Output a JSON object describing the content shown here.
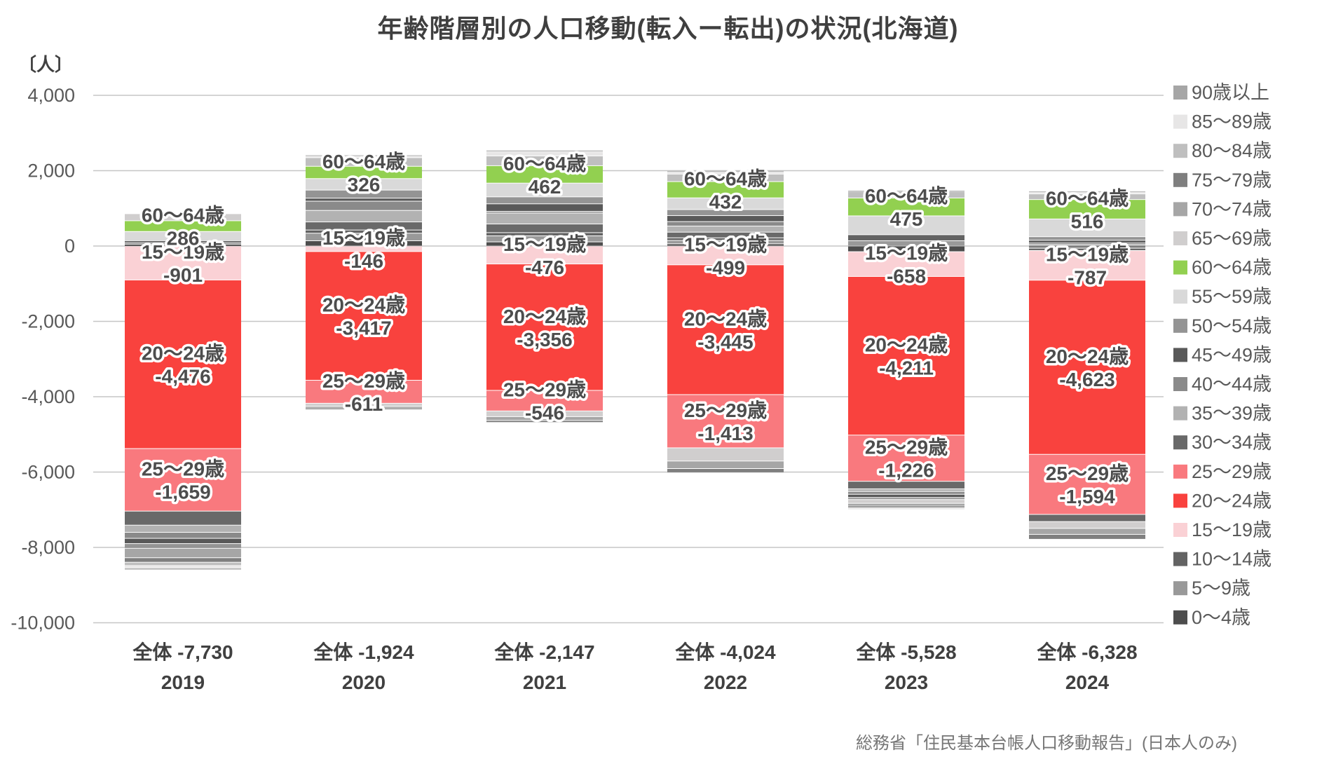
{
  "title": "年齢階層別の人口移動(転入ー転出)の状況(北海道)",
  "y_axis": {
    "unit": "〔人〕",
    "ticks": [
      {
        "label": "4,000",
        "value": 4000
      },
      {
        "label": "2,000",
        "value": 2000
      },
      {
        "label": "0",
        "value": 0
      },
      {
        "label": "-2,000",
        "value": -2000
      },
      {
        "label": "-4,000",
        "value": -4000
      },
      {
        "label": "-6,000",
        "value": -6000
      },
      {
        "label": "-8,000",
        "value": -8000
      },
      {
        "label": "-10,000",
        "value": -10000
      }
    ]
  },
  "source": "総務省「住民基本台帳人口移動報告」(日本人のみ)",
  "chart_data": {
    "type": "bar",
    "stacked": true,
    "grid": "horizontal",
    "legend_position": "right",
    "ylim": [
      -10000,
      4000
    ],
    "categories": [
      "2019",
      "2020",
      "2021",
      "2022",
      "2023",
      "2024"
    ],
    "totals": [
      -7730,
      -1924,
      -2147,
      -4024,
      -5528,
      -6328
    ],
    "total_label_prefix": "全体",
    "total_labels": [
      "全体 -7,730",
      "全体 -1,924",
      "全体 -2,147",
      "全体 -4,024",
      "全体 -5,528",
      "全体 -6,328"
    ],
    "series": [
      {
        "name": "0〜4歳",
        "color": "#4d4d4d",
        "labeled": false,
        "values": [
          40,
          140,
          110,
          58,
          -150,
          -25
        ]
      },
      {
        "name": "5〜9歳",
        "color": "#999999",
        "labeled": false,
        "values": [
          55,
          200,
          160,
          90,
          140,
          -35
        ]
      },
      {
        "name": "10〜14歳",
        "color": "#636363",
        "labeled": false,
        "values": [
          40,
          85,
          85,
          70,
          160,
          -60
        ]
      },
      {
        "name": "15〜19歳",
        "color": "#fad1d5",
        "labeled": true,
        "values": [
          -901,
          -146,
          -476,
          -499,
          -658,
          -787
        ]
      },
      {
        "name": "20〜24歳",
        "color": "#f9423e",
        "labeled": true,
        "values": [
          -4476,
          -3417,
          -3356,
          -3445,
          -4211,
          -4623
        ]
      },
      {
        "name": "25〜29歳",
        "color": "#f9797e",
        "labeled": true,
        "values": [
          -1659,
          -611,
          -546,
          -1413,
          -1226,
          -1594
        ]
      },
      {
        "name": "30〜34歳",
        "color": "#696969",
        "labeled": false,
        "values": [
          -373,
          215,
          230,
          150,
          -200,
          -190
        ]
      },
      {
        "name": "35〜39歳",
        "color": "#b2b2b2",
        "labeled": false,
        "values": [
          -190,
          305,
          290,
          160,
          -70,
          50
        ]
      },
      {
        "name": "40〜44歳",
        "color": "#8a8a8a",
        "labeled": false,
        "values": [
          -160,
          245,
          45,
          120,
          -75,
          35
        ]
      },
      {
        "name": "45〜49歳",
        "color": "#595959",
        "labeled": false,
        "values": [
          -140,
          80,
          200,
          160,
          -85,
          68
        ]
      },
      {
        "name": "50〜54歳",
        "color": "#949494",
        "labeled": false,
        "values": [
          -125,
          215,
          185,
          160,
          -55,
          95
        ]
      },
      {
        "name": "55〜59歳",
        "color": "#d9d9d9",
        "labeled": false,
        "values": [
          250,
          305,
          365,
          310,
          500,
          470
        ]
      },
      {
        "name": "60〜64歳",
        "color": "#92d050",
        "labeled": true,
        "values": [
          286,
          326,
          462,
          432,
          475,
          516
        ]
      },
      {
        "name": "65〜69歳",
        "color": "#d0cece",
        "labeled": false,
        "values": [
          187,
          -80,
          -150,
          -350,
          -100,
          -180
        ]
      },
      {
        "name": "70〜74歳",
        "color": "#a6a6a6",
        "labeled": false,
        "values": [
          -250,
          -50,
          -100,
          -200,
          -75,
          -160
        ]
      },
      {
        "name": "75〜79歳",
        "color": "#7f7f7f",
        "labeled": false,
        "values": [
          -120,
          -31,
          -56,
          -109,
          -35,
          -130
        ]
      },
      {
        "name": "80〜84歳",
        "color": "#bfbfbf",
        "labeled": false,
        "values": [
          -90,
          230,
          260,
          200,
          180,
          150
        ]
      },
      {
        "name": "85〜89歳",
        "color": "#e7e6e6",
        "labeled": false,
        "values": [
          -70,
          55,
          120,
          70,
          -58,
          60
        ]
      },
      {
        "name": "90歳以上",
        "color": "#a6a6a6",
        "labeled": false,
        "values": [
          -34,
          10,
          25,
          12,
          15,
          12
        ]
      }
    ]
  },
  "style": {
    "grid_color": "#c6c6c6",
    "tick_text_color": "#595959",
    "label_text_color": "#4d4d4d",
    "xlabel_text_color": "#404040",
    "legend_text_color": "#595959",
    "accent_green": "#92d050",
    "accent_red": "#f9423e"
  }
}
